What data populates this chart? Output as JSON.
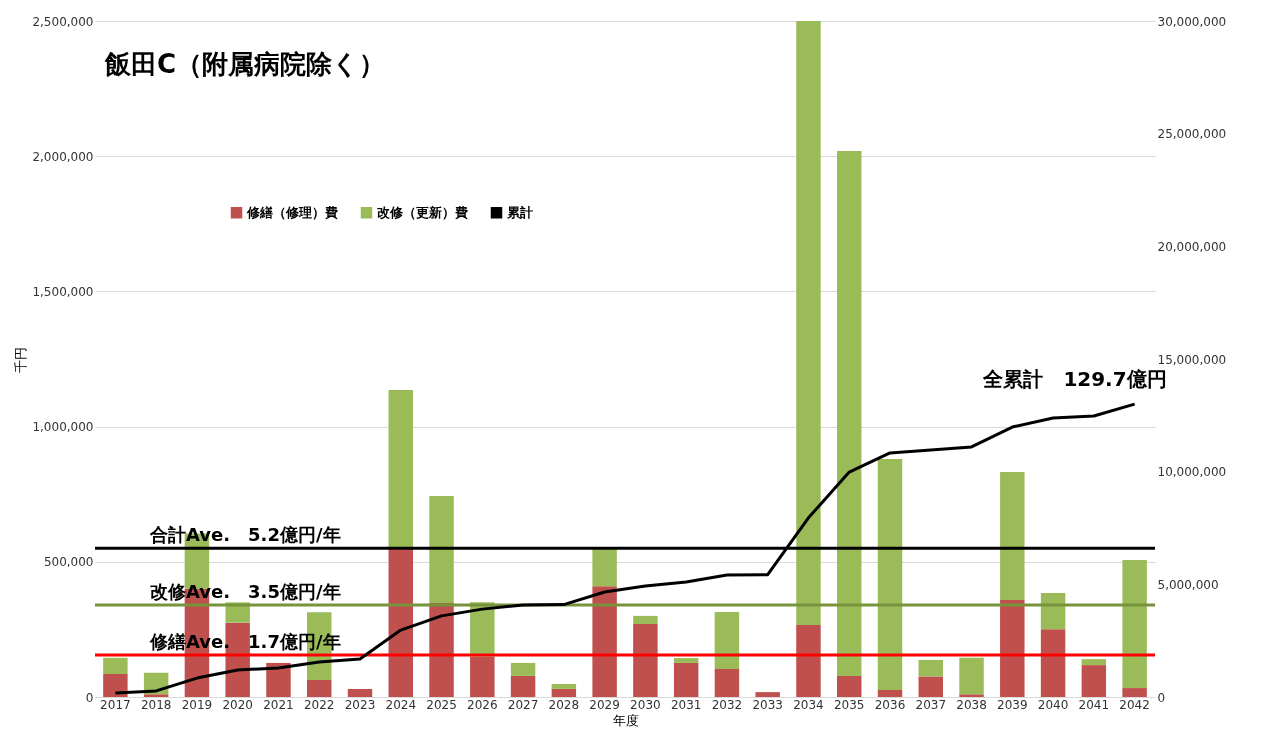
{
  "chart_data": {
    "type": "bar",
    "title": "飯田C（附属病院除く）",
    "xlabel": "年度",
    "ylabel": "千円",
    "stacked": true,
    "grid": "y",
    "legend": "top left",
    "categories": [
      "2017",
      "2018",
      "2019",
      "2020",
      "2021",
      "2022",
      "2023",
      "2024",
      "2025",
      "2026",
      "2027",
      "2028",
      "2029",
      "2030",
      "2031",
      "2032",
      "2033",
      "2034",
      "2035",
      "2036",
      "2037",
      "2038",
      "2039",
      "2040",
      "2041",
      "2042"
    ],
    "series": [
      {
        "name": "修繕（修理）費",
        "color": "#c0504d",
        "values": [
          85000,
          10000,
          400000,
          275000,
          126000,
          63000,
          30000,
          550000,
          348000,
          150000,
          78000,
          30000,
          410000,
          270000,
          126000,
          104000,
          18000,
          266000,
          78000,
          26000,
          76000,
          10000,
          359000,
          251000,
          118000,
          33000
        ]
      },
      {
        "name": "改修（更新）費",
        "color": "#9bbb59",
        "values": [
          60000,
          80000,
          205000,
          75000,
          0,
          250000,
          0,
          585000,
          395000,
          200000,
          48000,
          18000,
          140000,
          30000,
          18000,
          210000,
          0,
          2234000,
          1941000,
          854000,
          61000,
          135000,
          473000,
          134000,
          22000,
          474000
        ]
      },
      {
        "name": "累計",
        "type": "line",
        "axis": "y2",
        "color": "#000000",
        "values": [
          180000,
          270000,
          840000,
          1200000,
          1290000,
          1550000,
          1690000,
          2970000,
          3600000,
          3900000,
          4080000,
          4100000,
          4660000,
          4930000,
          5100000,
          5410000,
          5430000,
          7950000,
          9980000,
          10830000,
          10960000,
          11100000,
          11980000,
          12380000,
          12470000,
          13000000
        ]
      }
    ],
    "ylim": [
      0,
      2500000
    ],
    "yticks": [
      0,
      {
        "value": 500000,
        "label": "500,000"
      },
      {
        "value": 1000000,
        "label": "1,000,000"
      },
      {
        "value": 1500000,
        "label": "1,500,000"
      },
      {
        "value": 2000000,
        "label": "2,000,000"
      },
      {
        "value": 2500000,
        "label": "2,500,000"
      }
    ],
    "y2lim": [
      0,
      30000000
    ],
    "y2ticks": [
      0,
      {
        "value": 5000000,
        "label": "5,000,000"
      },
      {
        "value": 10000000,
        "label": "10,000,000"
      },
      {
        "value": 15000000,
        "label": "15,000,000"
      },
      {
        "value": 20000000,
        "label": "20,000,000"
      },
      {
        "value": 25000000,
        "label": "25,000,000"
      },
      {
        "value": 30000000,
        "label": "30,000,000"
      }
    ],
    "ref_lines": [
      {
        "axis": "y",
        "value": 550000,
        "label": "合計Ave.　5.2億円/年",
        "color": "#000000"
      },
      {
        "axis": "y",
        "value": 340000,
        "label": "改修Ave.　3.5億円/年",
        "color": "#77933c"
      },
      {
        "axis": "y",
        "value": 155000,
        "label": "修繕Ave.　1.7億円/年",
        "color": "#ff0000"
      }
    ],
    "annotations": [
      "全累計　129.7億円"
    ]
  }
}
